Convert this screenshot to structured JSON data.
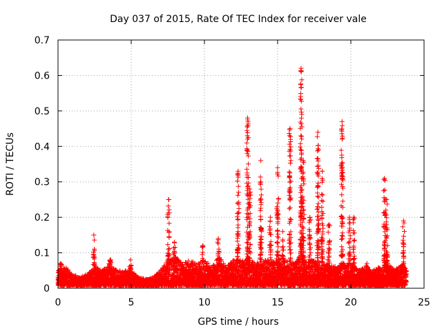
{
  "chart_data": {
    "type": "scatter",
    "title": "Day 037 of 2015, Rate Of TEC Index for receiver vale",
    "xlabel": "GPS time / hours",
    "ylabel": "ROTI / TECUs",
    "xlim": [
      0,
      25
    ],
    "ylim": [
      0,
      0.7
    ],
    "xticks": [
      "0",
      "5",
      "10",
      "15",
      "20",
      "25"
    ],
    "yticks": [
      "0",
      "0.1",
      "0.2",
      "0.3",
      "0.4",
      "0.5",
      "0.6",
      "0.7"
    ],
    "grid": true,
    "marker": "+",
    "series_color": "#ff0000",
    "x_range_observed": [
      0,
      23.8
    ],
    "baseline_envelope": [
      [
        0.0,
        0.05
      ],
      [
        0.5,
        0.06
      ],
      [
        1.0,
        0.04
      ],
      [
        1.5,
        0.03
      ],
      [
        2.0,
        0.04
      ],
      [
        2.5,
        0.06
      ],
      [
        3.0,
        0.05
      ],
      [
        3.5,
        0.07
      ],
      [
        4.0,
        0.05
      ],
      [
        4.5,
        0.05
      ],
      [
        5.0,
        0.05
      ],
      [
        5.5,
        0.03
      ],
      [
        6.0,
        0.025
      ],
      [
        6.5,
        0.03
      ],
      [
        7.0,
        0.05
      ],
      [
        7.5,
        0.08
      ],
      [
        8.0,
        0.09
      ],
      [
        8.5,
        0.07
      ],
      [
        9.0,
        0.08
      ],
      [
        9.5,
        0.07
      ],
      [
        10.0,
        0.08
      ],
      [
        10.5,
        0.06
      ],
      [
        11.0,
        0.09
      ],
      [
        11.5,
        0.06
      ],
      [
        12.0,
        0.08
      ],
      [
        12.5,
        0.08
      ],
      [
        13.0,
        0.08
      ],
      [
        13.5,
        0.07
      ],
      [
        14.0,
        0.08
      ],
      [
        14.5,
        0.08
      ],
      [
        15.0,
        0.09
      ],
      [
        15.5,
        0.08
      ],
      [
        16.0,
        0.07
      ],
      [
        16.5,
        0.09
      ],
      [
        17.0,
        0.08
      ],
      [
        17.5,
        0.08
      ],
      [
        18.0,
        0.07
      ],
      [
        18.5,
        0.07
      ],
      [
        19.0,
        0.06
      ],
      [
        19.5,
        0.07
      ],
      [
        20.0,
        0.07
      ],
      [
        20.5,
        0.05
      ],
      [
        21.0,
        0.06
      ],
      [
        21.5,
        0.05
      ],
      [
        22.0,
        0.06
      ],
      [
        22.5,
        0.07
      ],
      [
        23.0,
        0.05
      ],
      [
        23.5,
        0.07
      ],
      [
        23.8,
        0.05
      ]
    ],
    "spikes": [
      {
        "x": 0.2,
        "peak": 0.07
      },
      {
        "x": 2.45,
        "peak": 0.15
      },
      {
        "x": 3.6,
        "peak": 0.08
      },
      {
        "x": 4.95,
        "peak": 0.08
      },
      {
        "x": 7.55,
        "peak": 0.25
      },
      {
        "x": 7.95,
        "peak": 0.13
      },
      {
        "x": 9.9,
        "peak": 0.12
      },
      {
        "x": 10.95,
        "peak": 0.14
      },
      {
        "x": 12.3,
        "peak": 0.33
      },
      {
        "x": 12.95,
        "peak": 0.48
      },
      {
        "x": 13.1,
        "peak": 0.28
      },
      {
        "x": 13.85,
        "peak": 0.36
      },
      {
        "x": 14.5,
        "peak": 0.2
      },
      {
        "x": 15.0,
        "peak": 0.34
      },
      {
        "x": 15.35,
        "peak": 0.16
      },
      {
        "x": 15.85,
        "peak": 0.45
      },
      {
        "x": 16.6,
        "peak": 0.62
      },
      {
        "x": 16.75,
        "peak": 0.36
      },
      {
        "x": 17.2,
        "peak": 0.2
      },
      {
        "x": 17.75,
        "peak": 0.44
      },
      {
        "x": 18.05,
        "peak": 0.33
      },
      {
        "x": 18.5,
        "peak": 0.18
      },
      {
        "x": 19.4,
        "peak": 0.47
      },
      {
        "x": 19.9,
        "peak": 0.2
      },
      {
        "x": 20.2,
        "peak": 0.2
      },
      {
        "x": 21.1,
        "peak": 0.07
      },
      {
        "x": 22.3,
        "peak": 0.31
      },
      {
        "x": 22.45,
        "peak": 0.25
      },
      {
        "x": 23.6,
        "peak": 0.19
      }
    ]
  }
}
